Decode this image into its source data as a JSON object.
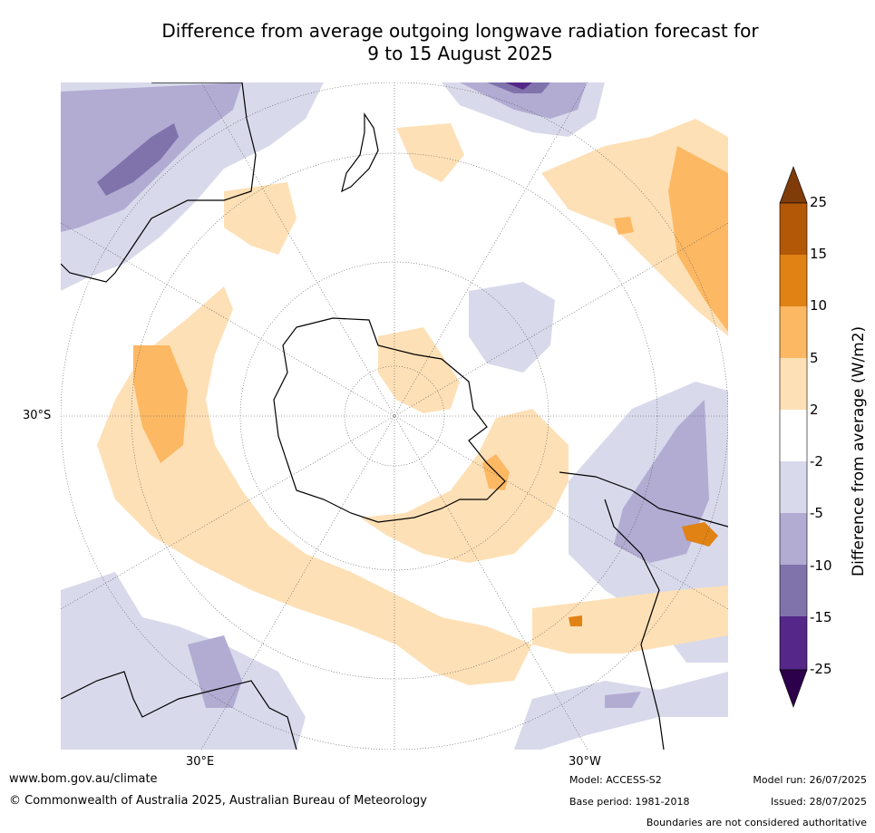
{
  "title_line1": "Difference from average outgoing longwave radiation forecast for",
  "title_line2": "9 to 15 August 2025",
  "map": {
    "projection": "south-polar-stereographic",
    "lat_label": "30°S",
    "lon_labels": {
      "east": "30°E",
      "west": "30°W"
    }
  },
  "colorbar": {
    "title": "Difference from average (W/m2)",
    "ticks": [
      "25",
      "15",
      "10",
      "5",
      "2",
      "-2",
      "-5",
      "-10",
      "-15",
      "-25"
    ],
    "colors": {
      "above_25": "#7f3b08",
      "15_25": "#b35806",
      "10_15": "#e08214",
      "5_10": "#fdb863",
      "2_5": "#fee0b6",
      "-2_2": "#ffffff",
      "-5_-2": "#d8daeb",
      "-10_-5": "#b2abd2",
      "-15_-10": "#8073ac",
      "-25_-15": "#542788",
      "below_-25": "#2d004b"
    }
  },
  "footer": {
    "website": "www.bom.gov.au/climate",
    "copyright": "© Commonwealth of Australia 2025, Australian Bureau of Meteorology",
    "model": "Model: ACCESS-S2",
    "base_period": "Base period: 1981-2018",
    "model_run": "Model run: 26/07/2025",
    "issued": "Issued: 28/07/2025",
    "disclaimer": "Boundaries are not considered authoritative"
  }
}
